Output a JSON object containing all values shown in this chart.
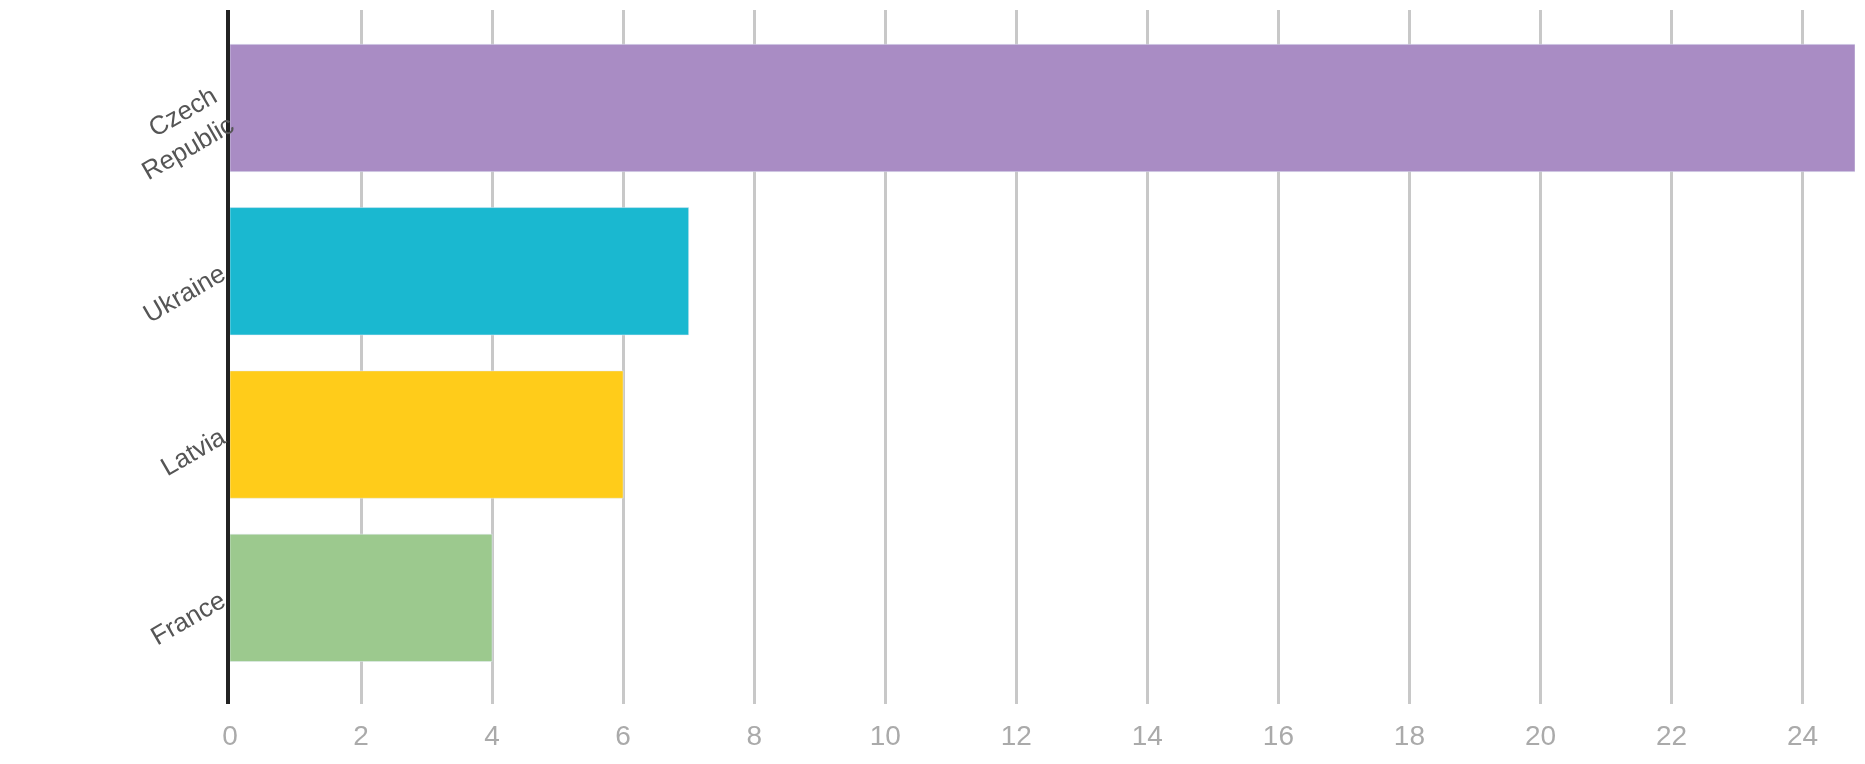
{
  "chart_data": {
    "type": "bar",
    "orientation": "horizontal",
    "categories": [
      "Czech Republic",
      "Ukraine",
      "Latvia",
      "France"
    ],
    "values": [
      24.8,
      7,
      6,
      4
    ],
    "colors": [
      "#a98cc4",
      "#1ab8d0",
      "#ffcc1a",
      "#9cc98e"
    ],
    "xlim": [
      0,
      24.8
    ],
    "xticks": [
      0,
      2,
      4,
      6,
      8,
      10,
      12,
      14,
      16,
      18,
      20,
      22,
      24
    ],
    "grid": "x"
  }
}
